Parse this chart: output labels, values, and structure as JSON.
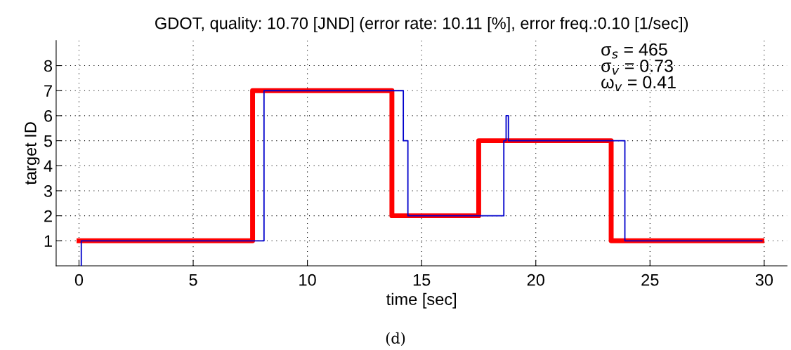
{
  "chart_data": {
    "type": "step",
    "title": "GDOT, quality: 10.70 [JND] (error rate: 10.11 [%], error freq.:0.10 [1/sec])",
    "xlabel": "time [sec]",
    "ylabel": "target ID",
    "series": [
      {
        "color": "#ff0000",
        "x": [
          0,
          7.6,
          13.7,
          17.5,
          23.3,
          29.9
        ],
        "values": [
          1,
          7,
          2,
          5,
          1,
          1
        ]
      },
      {
        "color": "#0000cc",
        "x": [
          0.1,
          0.1,
          8.1,
          14.2,
          14.4,
          18.6,
          18.7,
          18.8,
          23.9,
          29.9
        ],
        "values": [
          0,
          1,
          7,
          5,
          2,
          5,
          6,
          5,
          1,
          1
        ]
      }
    ],
    "xlim": [
      -1,
      31
    ],
    "xticks": [
      0,
      5,
      10,
      15,
      20,
      25,
      30
    ],
    "ylim": [
      0,
      9
    ],
    "yticks": [
      1,
      2,
      3,
      4,
      5,
      6,
      7,
      8
    ],
    "grid": true,
    "annotations": [
      "σ$_{s}$ = 465\nσ$_{v}$ = 0.73\nω$_{v}$ = 0.41",
      "(d)"
    ]
  }
}
